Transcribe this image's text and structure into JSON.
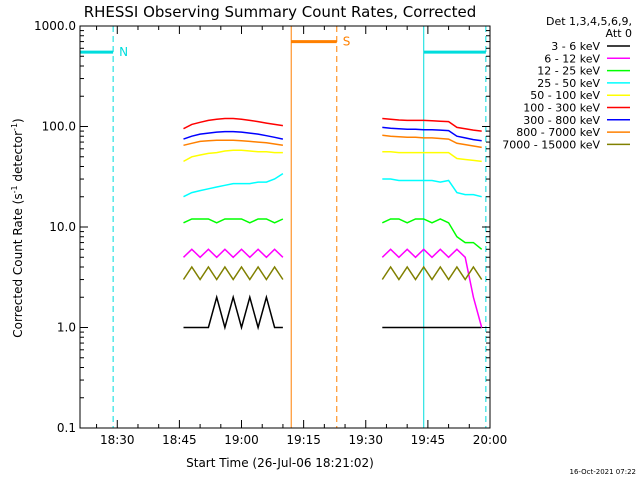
{
  "chart_data": {
    "type": "line",
    "title": "RHESSI Observing Summary Count Rates, Corrected",
    "xlabel": "Start Time (26-Jul-06 18:21:02)",
    "ylabel": "Corrected Count Rate (s⁻¹ detector⁻¹)",
    "ylabel_parts": {
      "base": "Corrected Count Rate (s",
      "sup1": "-1",
      "mid": " detector",
      "sup2": "-1",
      "end": ")"
    },
    "y_scale": "log",
    "ylim": [
      0.1,
      1000.0
    ],
    "xlim": [
      "18:21",
      "20:00"
    ],
    "y_ticks": [
      {
        "value": 0.1,
        "label": "0.1"
      },
      {
        "value": 1.0,
        "label": "1.0"
      },
      {
        "value": 10.0,
        "label": "10.0"
      },
      {
        "value": 100.0,
        "label": "100.0"
      },
      {
        "value": 1000.0,
        "label": "1000.0"
      }
    ],
    "x_ticks": [
      "18:30",
      "18:45",
      "19:00",
      "19:15",
      "19:30",
      "19:45",
      "20:00"
    ],
    "legend_header": [
      "Det 1,3,4,5,6,9,",
      "Att 0"
    ],
    "legend_placement": "right",
    "grid": false,
    "footer": "16-Oct-2021 07:22",
    "series": [
      {
        "name": "3 - 6 keV",
        "color": "#000000",
        "segments": [
          {
            "start": "18:46",
            "end": "19:10",
            "values": [
              1.0,
              1.0,
              1.0,
              1.0,
              2.0,
              1.0,
              2.0,
              1.0,
              2.0,
              1.0,
              2.0,
              1.0,
              1.0
            ]
          },
          {
            "start": "19:34",
            "end": "19:58",
            "values": [
              1.0,
              1.0,
              1.0,
              1.0,
              1.0,
              1.0,
              1.0,
              1.0,
              1.0,
              1.0,
              1.0,
              1.0,
              1.0
            ]
          }
        ]
      },
      {
        "name": "6 - 12 keV",
        "color": "#ff00ff",
        "segments": [
          {
            "start": "18:46",
            "end": "19:10",
            "values": [
              5.0,
              6.0,
              5.0,
              6.0,
              5.0,
              6.0,
              5.0,
              6.0,
              5.0,
              6.0,
              5.0,
              6.0,
              5.0
            ]
          },
          {
            "start": "19:34",
            "end": "19:58",
            "values": [
              5.0,
              6.0,
              5.0,
              6.0,
              5.0,
              6.0,
              5.0,
              6.0,
              5.0,
              6.0,
              5.0,
              2.0,
              1.0
            ]
          }
        ]
      },
      {
        "name": "12 - 25 keV",
        "color": "#00ff00",
        "segments": [
          {
            "start": "18:46",
            "end": "19:10",
            "values": [
              11.0,
              12.0,
              12.0,
              12.0,
              11.0,
              12.0,
              12.0,
              12.0,
              11.0,
              12.0,
              12.0,
              11.0,
              12.0
            ]
          },
          {
            "start": "19:34",
            "end": "19:58",
            "values": [
              11.0,
              12.0,
              12.0,
              11.0,
              12.0,
              12.0,
              11.0,
              12.0,
              11.0,
              8.0,
              7.0,
              7.0,
              6.0
            ]
          }
        ]
      },
      {
        "name": "25 - 50 keV",
        "color": "#00ffff",
        "segments": [
          {
            "start": "18:46",
            "end": "19:10",
            "values": [
              20.0,
              22.0,
              23.0,
              24.0,
              25.0,
              26.0,
              27.0,
              27.0,
              27.0,
              28.0,
              28.0,
              30.0,
              34.0
            ]
          },
          {
            "start": "19:34",
            "end": "19:58",
            "values": [
              30.0,
              30.0,
              29.0,
              29.0,
              29.0,
              29.0,
              29.0,
              28.0,
              29.0,
              22.0,
              21.0,
              21.0,
              20.0
            ]
          }
        ]
      },
      {
        "name": "50 - 100 keV",
        "color": "#ffff00",
        "segments": [
          {
            "start": "18:46",
            "end": "19:10",
            "values": [
              45.0,
              50.0,
              52.0,
              54.0,
              55.0,
              57.0,
              58.0,
              58.0,
              57.0,
              56.0,
              56.0,
              55.0,
              55.0
            ]
          },
          {
            "start": "19:34",
            "end": "19:58",
            "values": [
              56.0,
              56.0,
              55.0,
              55.0,
              55.0,
              55.0,
              55.0,
              55.0,
              55.0,
              48.0,
              47.0,
              46.0,
              45.0
            ]
          }
        ]
      },
      {
        "name": "100 - 300 keV",
        "color": "#ff0000",
        "segments": [
          {
            "start": "18:46",
            "end": "19:10",
            "values": [
              95.0,
              105.0,
              110.0,
              115.0,
              118.0,
              120.0,
              120.0,
              118.0,
              115.0,
              112.0,
              108.0,
              105.0,
              102.0
            ]
          },
          {
            "start": "19:34",
            "end": "19:58",
            "values": [
              120.0,
              118.0,
              116.0,
              115.0,
              115.0,
              115.0,
              114.0,
              113.0,
              112.0,
              98.0,
              95.0,
              92.0,
              90.0
            ]
          }
        ]
      },
      {
        "name": "300 - 800 keV",
        "color": "#0000ff",
        "segments": [
          {
            "start": "18:46",
            "end": "19:10",
            "values": [
              75.0,
              80.0,
              84.0,
              86.0,
              88.0,
              89.0,
              89.0,
              88.0,
              86.0,
              84.0,
              81.0,
              78.0,
              75.0
            ]
          },
          {
            "start": "19:34",
            "end": "19:58",
            "values": [
              98.0,
              96.0,
              95.0,
              94.0,
              94.0,
              93.0,
              93.0,
              92.0,
              91.0,
              80.0,
              77.0,
              74.0,
              72.0
            ]
          }
        ]
      },
      {
        "name": "800 - 7000 keV",
        "color": "#ff8000",
        "segments": [
          {
            "start": "18:46",
            "end": "19:10",
            "values": [
              65.0,
              68.0,
              71.0,
              72.0,
              73.0,
              73.0,
              73.0,
              72.0,
              71.0,
              70.0,
              69.0,
              67.0,
              65.0
            ]
          },
          {
            "start": "19:34",
            "end": "19:58",
            "values": [
              82.0,
              80.0,
              79.0,
              78.0,
              78.0,
              77.0,
              77.0,
              76.0,
              75.0,
              68.0,
              66.0,
              64.0,
              62.0
            ]
          }
        ]
      },
      {
        "name": "7000 - 15000 keV",
        "color": "#808000",
        "segments": [
          {
            "start": "18:46",
            "end": "19:10",
            "values": [
              3.0,
              4.0,
              3.0,
              4.0,
              3.0,
              4.0,
              3.0,
              4.0,
              3.0,
              4.0,
              3.0,
              4.0,
              3.0
            ]
          },
          {
            "start": "19:34",
            "end": "19:58",
            "values": [
              3.0,
              4.0,
              3.0,
              4.0,
              3.0,
              4.0,
              3.0,
              4.0,
              3.0,
              4.0,
              3.0,
              4.0,
              3.0
            ]
          }
        ]
      }
    ],
    "annotations": [
      {
        "label": "N",
        "color": "#00dddd",
        "bar": [
          "18:21",
          "18:29"
        ],
        "bar_value": 550,
        "lines_solid": [
          "18:21"
        ],
        "lines_dashed": [
          "18:29"
        ]
      },
      {
        "label": "S",
        "color": "#ff8000",
        "bar": [
          "19:12",
          "19:23"
        ],
        "bar_value": 700,
        "lines_solid": [
          "19:12"
        ],
        "lines_dashed": [
          "19:23"
        ]
      },
      {
        "label": "",
        "color": "#00dddd",
        "bar": [
          "19:44",
          "19:59"
        ],
        "bar_value": 550,
        "lines_solid": [
          "19:44"
        ],
        "lines_dashed": [
          "19:59"
        ]
      }
    ]
  }
}
